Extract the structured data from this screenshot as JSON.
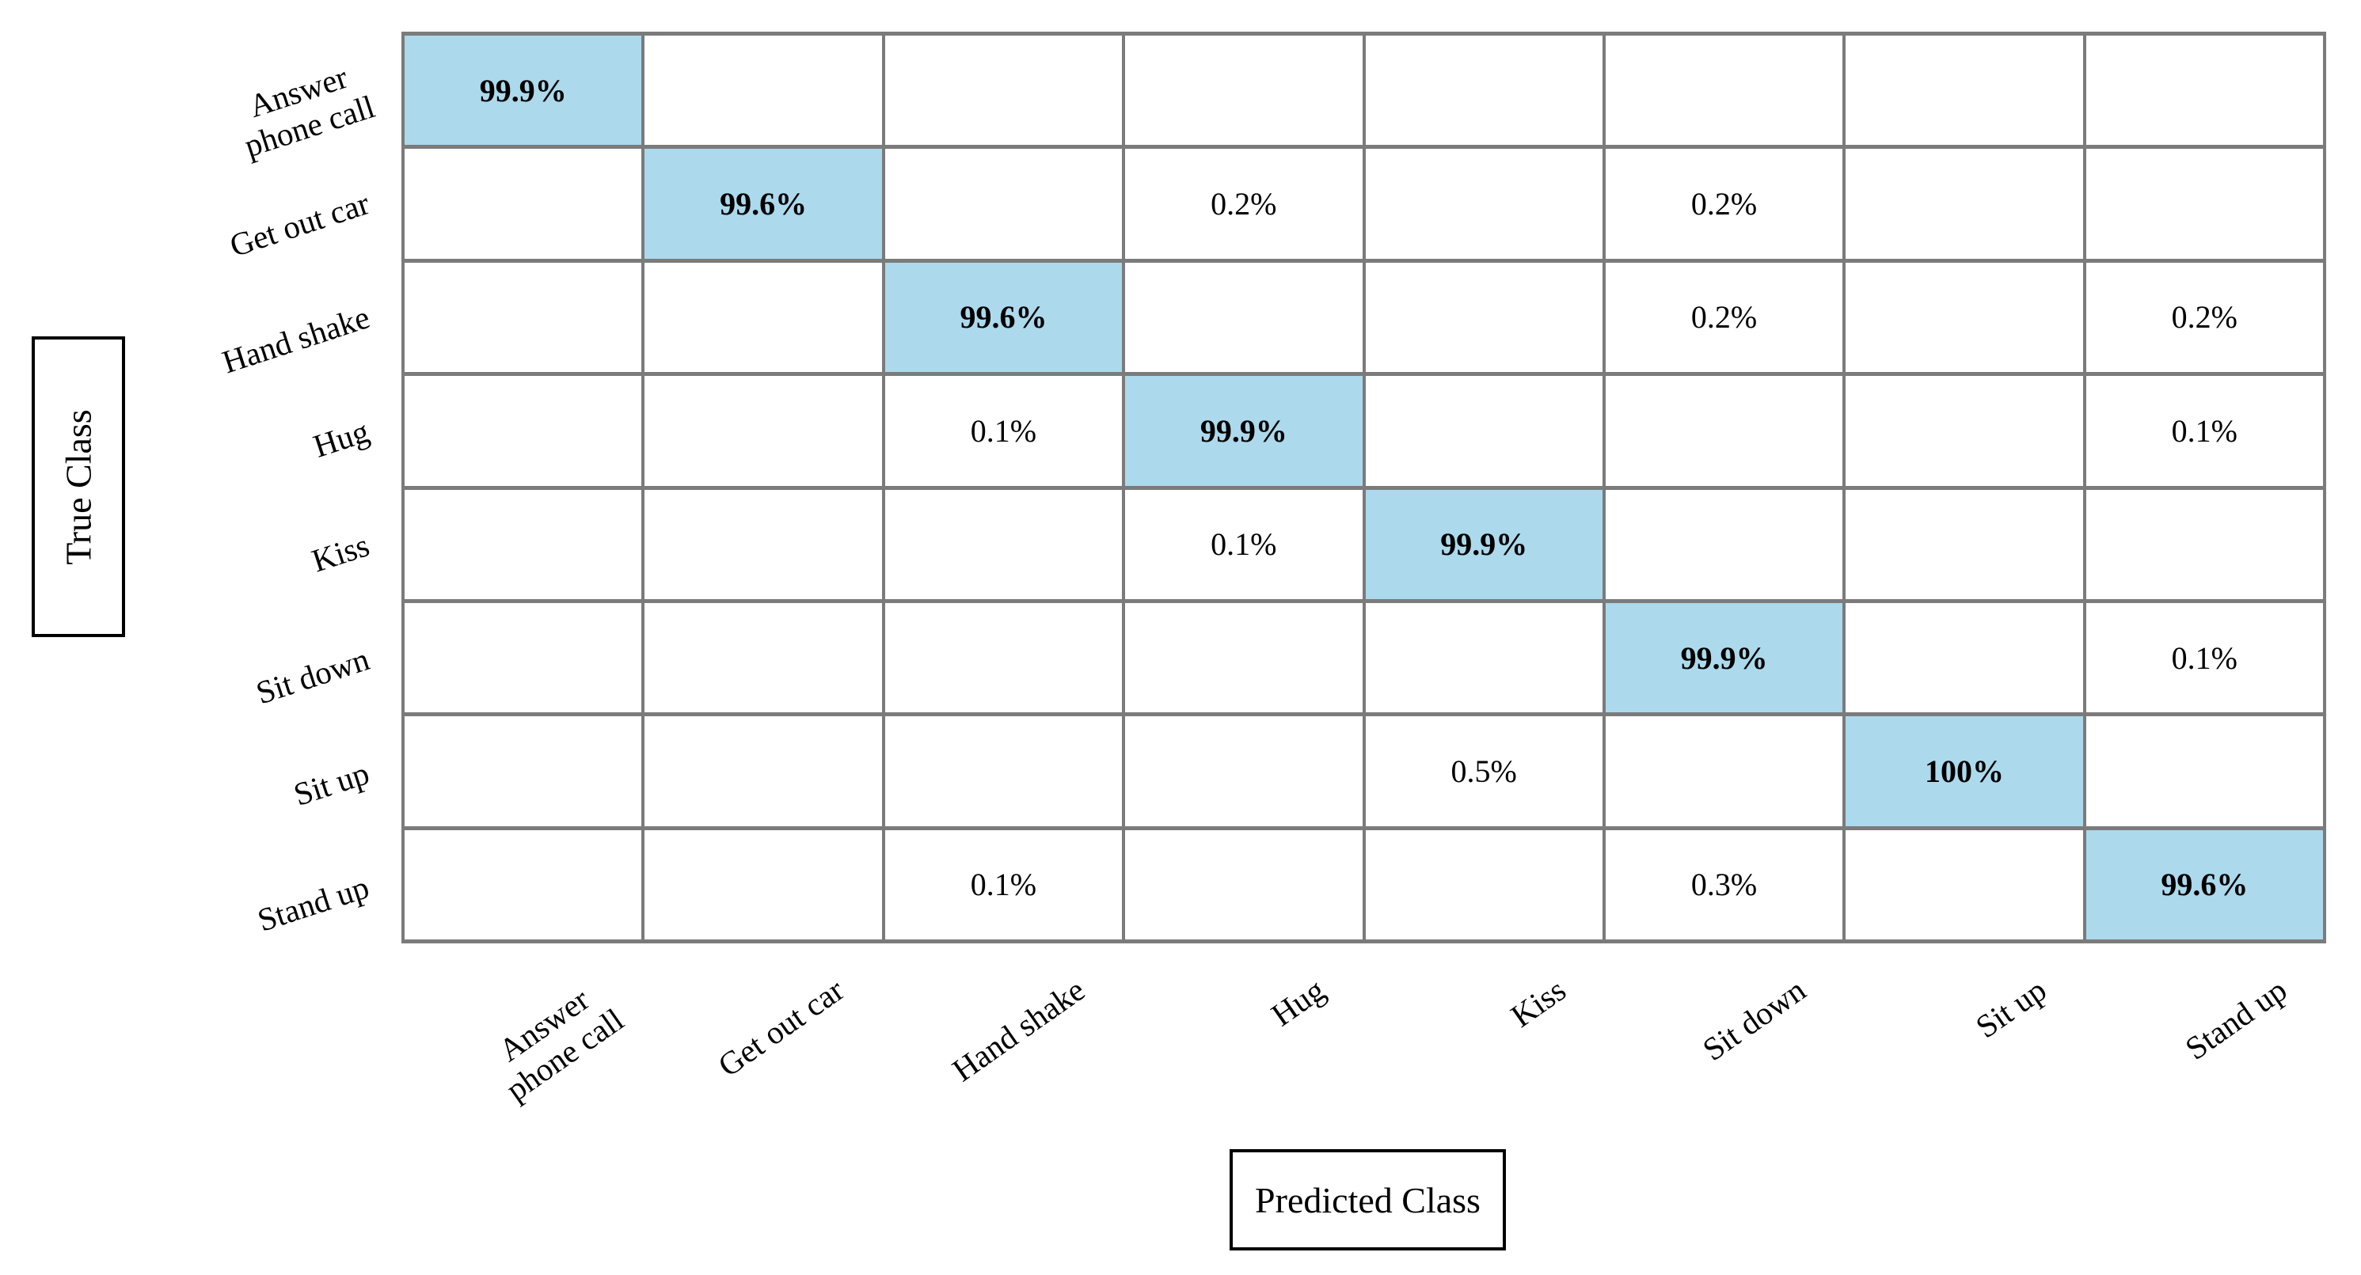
{
  "chart_data": {
    "type": "heatmap",
    "subtype": "confusion-matrix",
    "x_label": "Predicted Class",
    "y_label": "True Class",
    "categories": [
      "Answer phone call",
      "Get out car",
      "Hand shake",
      "Hug",
      "Kiss",
      "Sit down",
      "Sit up",
      "Stand up"
    ],
    "row_labels_display": [
      "Answer\nphone call",
      "Get out car",
      "Hand shake",
      "Hug",
      "Kiss",
      "Sit down",
      "Sit up",
      "Stand up"
    ],
    "col_labels_display": [
      "Answer\nphone call",
      "Get out car",
      "Hand shake",
      "Hug",
      "Kiss",
      "Sit down",
      "Sit up",
      "Stand up"
    ],
    "matrix": [
      [
        "99.9%",
        "",
        "",
        "",
        "",
        "",
        "",
        ""
      ],
      [
        "",
        "99.6%",
        "",
        "0.2%",
        "",
        "0.2%",
        "",
        ""
      ],
      [
        "",
        "",
        "99.6%",
        "",
        "",
        "0.2%",
        "",
        "0.2%"
      ],
      [
        "",
        "",
        "0.1%",
        "99.9%",
        "",
        "",
        "",
        "0.1%"
      ],
      [
        "",
        "",
        "",
        "0.1%",
        "99.9%",
        "",
        "",
        ""
      ],
      [
        "",
        "",
        "",
        "",
        "",
        "99.9%",
        "",
        "0.1%"
      ],
      [
        "",
        "",
        "",
        "",
        "0.5%",
        "",
        "100%",
        ""
      ],
      [
        "",
        "",
        "0.1%",
        "",
        "",
        "0.3%",
        "",
        "99.6%"
      ]
    ],
    "diagonal_highlighted": true,
    "legend": "none",
    "grid": "on",
    "colors": {
      "diagonal_fill": "#ACD9EC",
      "grid_line": "#7B7B7B",
      "axis_box_border": "#000000",
      "text": "#000000",
      "background": "#FFFFFF"
    }
  }
}
